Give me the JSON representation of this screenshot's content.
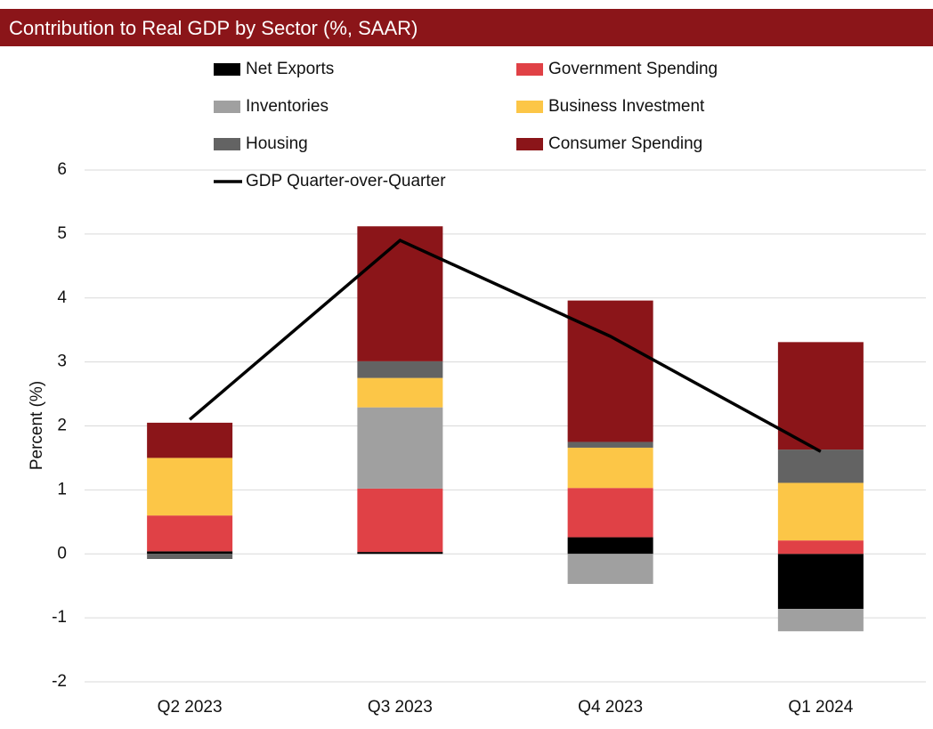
{
  "chart_data": {
    "type": "bar",
    "stacked": true,
    "title": "Contribution to Real GDP by Sector (%, SAAR)",
    "y_label": "Percent (%)",
    "categories": [
      "Q2 2023",
      "Q3 2023",
      "Q4 2023",
      "Q1 2024"
    ],
    "series": [
      {
        "name": "Net Exports",
        "color": "#000000",
        "values": [
          0.04,
          0.03,
          0.26,
          -0.86
        ]
      },
      {
        "name": "Government Spending",
        "color": "#e04146",
        "values": [
          0.56,
          0.99,
          0.77,
          0.21
        ]
      },
      {
        "name": "Inventories",
        "color": "#a0a0a0",
        "values": [
          0,
          1.27,
          -0.47,
          -0.35
        ]
      },
      {
        "name": "Business Investment",
        "color": "#fcc647",
        "values": [
          0.9,
          0.46,
          0.63,
          0.9
        ]
      },
      {
        "name": "Housing",
        "color": "#636363",
        "values": [
          -0.08,
          0.26,
          0.09,
          0.52
        ]
      },
      {
        "name": "Consumer Spending",
        "color": "#8b1519",
        "values": [
          0.55,
          2.11,
          2.21,
          1.68
        ]
      }
    ],
    "line_series": {
      "name": "GDP Quarter-over-Quarter",
      "color": "#000000",
      "values": [
        2.1,
        4.9,
        3.4,
        1.6
      ]
    },
    "ylim": [
      -2,
      6
    ],
    "yticks": [
      -2,
      -1,
      0,
      1,
      2,
      3,
      4,
      5,
      6
    ],
    "grid": true
  }
}
